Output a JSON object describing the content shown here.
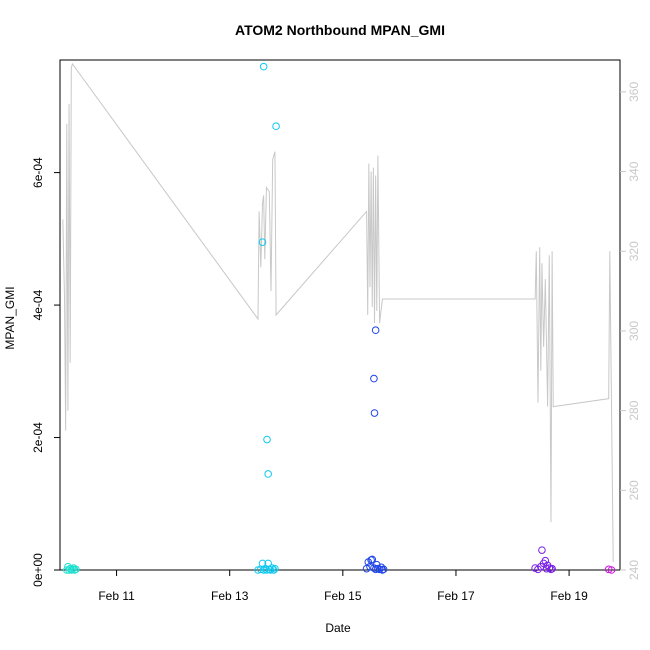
{
  "chart_data": {
    "type": "scatter",
    "title": "ATOM2 Northbound MPAN_GMI",
    "xlabel": "Date",
    "ylabel": "MPAN_GMI",
    "x_ticks": [
      "Feb 11",
      "Feb 13",
      "Feb 15",
      "Feb 17",
      "Feb 19"
    ],
    "y_ticks": [
      "0e+00",
      "2e-04",
      "4e-04",
      "6e-04"
    ],
    "y2_ticks": [
      "240",
      "260",
      "280",
      "300",
      "320",
      "340",
      "360"
    ],
    "xlim": [
      10.0,
      19.9
    ],
    "ylim": [
      0,
      0.00077
    ],
    "y2lim": [
      240,
      368
    ],
    "grid": false,
    "series": [
      {
        "kind": "points",
        "points": [
          [
            10.12,
            0.0
          ],
          [
            10.14,
            5e-06
          ],
          [
            10.16,
            0.0
          ],
          [
            10.18,
            2e-06
          ],
          [
            10.2,
            0.0
          ],
          [
            10.22,
            1e-06
          ],
          [
            10.24,
            3e-06
          ],
          [
            10.26,
            0.0
          ],
          [
            10.28,
            1e-06
          ],
          [
            13.5,
            0.0
          ],
          [
            13.55,
            1e-06
          ],
          [
            13.58,
            1e-05
          ],
          [
            13.6,
            0.0
          ],
          [
            13.63,
            2e-06
          ],
          [
            13.65,
            0.0
          ],
          [
            13.68,
            1e-05
          ],
          [
            13.7,
            1e-06
          ],
          [
            13.72,
            0.0
          ],
          [
            13.75,
            3e-06
          ],
          [
            13.78,
            0.0
          ],
          [
            13.8,
            2e-06
          ],
          [
            13.6,
            0.00076
          ],
          [
            13.82,
            0.00067
          ],
          [
            13.58,
            0.000495
          ],
          [
            13.66,
            0.000197
          ],
          [
            13.68,
            0.000145
          ],
          [
            15.42,
            2e-06
          ],
          [
            15.45,
            1.2e-05
          ],
          [
            15.48,
            5e-06
          ],
          [
            15.5,
            1.5e-05
          ],
          [
            15.52,
            1.6e-05
          ],
          [
            15.55,
            3e-06
          ],
          [
            15.58,
            1e-06
          ],
          [
            15.6,
            8e-06
          ],
          [
            15.62,
            2e-06
          ],
          [
            15.65,
            1e-06
          ],
          [
            15.68,
            4e-06
          ],
          [
            15.7,
            0.0
          ],
          [
            15.72,
            1e-06
          ],
          [
            15.58,
            0.000362
          ],
          [
            15.55,
            0.000289
          ],
          [
            15.56,
            0.000237
          ],
          [
            18.4,
            3e-06
          ],
          [
            18.45,
            1e-06
          ],
          [
            18.5,
            5e-06
          ],
          [
            18.52,
            3e-05
          ],
          [
            18.55,
            1e-05
          ],
          [
            18.58,
            1.4e-05
          ],
          [
            18.6,
            2e-06
          ],
          [
            18.62,
            7e-06
          ],
          [
            18.65,
            3e-06
          ],
          [
            18.68,
            1e-06
          ],
          [
            18.7,
            2e-06
          ],
          [
            19.7,
            1e-06
          ],
          [
            19.75,
            0.0
          ]
        ]
      },
      {
        "kind": "line",
        "axis": "right",
        "points": [
          [
            10.05,
            328
          ],
          [
            10.08,
            308
          ],
          [
            10.1,
            275
          ],
          [
            10.12,
            352
          ],
          [
            10.14,
            280
          ],
          [
            10.16,
            357
          ],
          [
            10.18,
            292
          ],
          [
            10.2,
            366
          ],
          [
            10.22,
            367
          ],
          [
            13.5,
            303
          ],
          [
            13.52,
            330
          ],
          [
            13.55,
            316
          ],
          [
            13.58,
            332
          ],
          [
            13.6,
            334
          ],
          [
            13.62,
            318
          ],
          [
            13.65,
            336
          ],
          [
            13.7,
            335
          ],
          [
            13.73,
            310
          ],
          [
            13.76,
            343
          ],
          [
            13.8,
            345
          ],
          [
            13.82,
            304
          ],
          [
            15.42,
            330
          ],
          [
            15.44,
            304
          ],
          [
            15.46,
            342
          ],
          [
            15.48,
            311
          ],
          [
            15.5,
            340
          ],
          [
            15.52,
            306
          ],
          [
            15.54,
            341
          ],
          [
            15.56,
            302
          ],
          [
            15.58,
            339
          ],
          [
            15.6,
            305
          ],
          [
            15.62,
            344
          ],
          [
            15.65,
            302
          ],
          [
            15.7,
            308
          ],
          [
            18.4,
            308
          ],
          [
            18.42,
            320
          ],
          [
            18.45,
            282
          ],
          [
            18.48,
            321
          ],
          [
            18.5,
            290
          ],
          [
            18.52,
            317
          ],
          [
            18.55,
            296
          ],
          [
            18.58,
            313
          ],
          [
            18.62,
            281
          ],
          [
            18.65,
            319
          ],
          [
            18.68,
            252
          ],
          [
            18.7,
            320
          ],
          [
            18.72,
            281
          ],
          [
            19.7,
            283
          ],
          [
            19.72,
            320
          ],
          [
            19.78,
            242
          ]
        ]
      }
    ]
  }
}
